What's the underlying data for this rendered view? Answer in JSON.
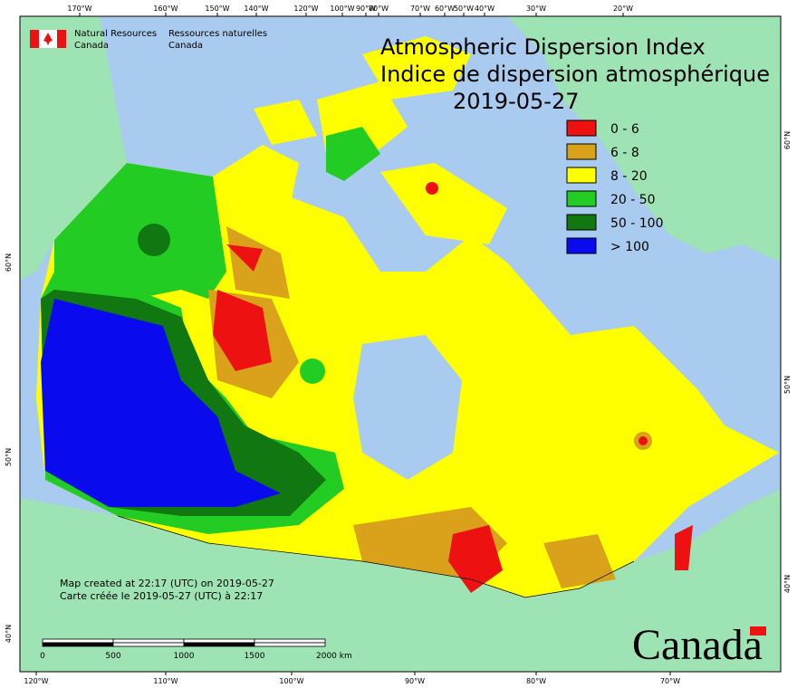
{
  "header": {
    "org_en": [
      "Natural Resources",
      "Canada"
    ],
    "org_fr": [
      "Ressources naturelles",
      "Canada"
    ],
    "title_en": "Atmospheric Dispersion Index",
    "title_fr": "Indice de dispersion atmosphérique",
    "date": "2019-05-27"
  },
  "legend": [
    {
      "label": "0 - 6",
      "color": "#ee1111"
    },
    {
      "label": "6 - 8",
      "color": "#d9a21a"
    },
    {
      "label": "8 - 20",
      "color": "#ffff00"
    },
    {
      "label": "20 - 50",
      "color": "#22cc22"
    },
    {
      "label": "50 - 100",
      "color": "#117711"
    },
    {
      "label": "> 100",
      "color": "#0a0aee"
    }
  ],
  "top_ticks": [
    "170°W",
    "160°W",
    "150°W",
    "140°W",
    "120°W",
    "100°W",
    "90°W",
    "80°W",
    "70°W",
    "60°W",
    "50°W",
    "40°W",
    "30°W",
    "20°W"
  ],
  "bottom_ticks": [
    "120°W",
    "110°W",
    "100°W",
    "90°W",
    "80°W",
    "70°W"
  ],
  "left_ticks": [
    "60°N",
    "50°N",
    "40°N"
  ],
  "right_ticks": [
    "60°N",
    "50°N",
    "40°N"
  ],
  "notes": [
    "Map created at 22:17 (UTC) on 2019-05-27",
    "Carte créée le 2019-05-27 (UTC) à 22:17"
  ],
  "scale_bar": [
    "0",
    "500",
    "1000",
    "1500",
    "2000 km"
  ],
  "wordmark": "Canada"
}
